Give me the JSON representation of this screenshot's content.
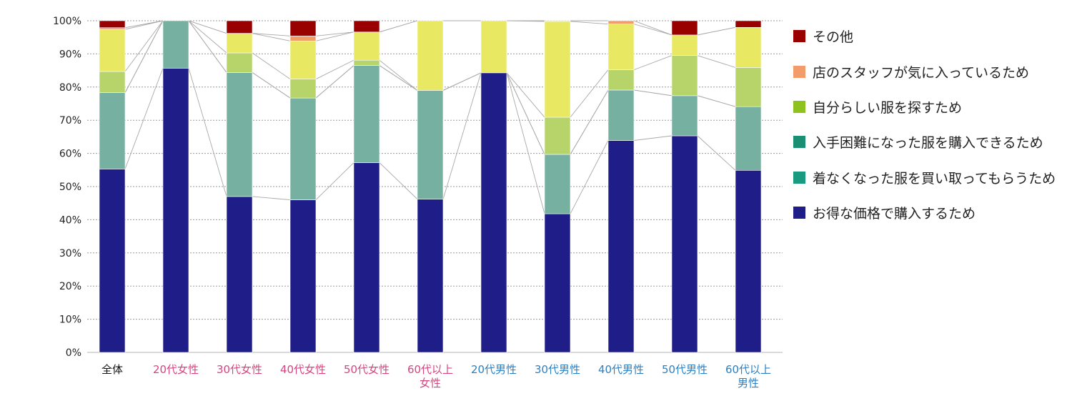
{
  "chart_data": {
    "type": "bar",
    "stacked": true,
    "categories": [
      {
        "label": [
          "全体"
        ],
        "color": "#111111"
      },
      {
        "label": [
          "20代女性"
        ],
        "color": "#d6447f"
      },
      {
        "label": [
          "30代女性"
        ],
        "color": "#d6447f"
      },
      {
        "label": [
          "40代女性"
        ],
        "color": "#d6447f"
      },
      {
        "label": [
          "50代女性"
        ],
        "color": "#d6447f"
      },
      {
        "label": [
          "60代以上",
          "女性"
        ],
        "color": "#d6447f"
      },
      {
        "label": [
          "20代男性"
        ],
        "color": "#2c7fc1"
      },
      {
        "label": [
          "30代男性"
        ],
        "color": "#2c7fc1"
      },
      {
        "label": [
          "40代男性"
        ],
        "color": "#2c7fc1"
      },
      {
        "label": [
          "50代男性"
        ],
        "color": "#2c7fc1"
      },
      {
        "label": [
          "60代以上",
          "男性"
        ],
        "color": "#2c7fc1"
      }
    ],
    "series": [
      {
        "name": "お得な価格で購入するため",
        "color": "#1f1d87",
        "values": [
          55.3,
          85.7,
          47.0,
          46.0,
          57.2,
          46.2,
          84.3,
          41.8,
          63.9,
          65.3,
          54.9
        ]
      },
      {
        "name": "着なくなった服を買い取ってもらうため",
        "color": "#76b0a0",
        "values": [
          23.0,
          14.3,
          37.4,
          30.7,
          29.3,
          32.8,
          0,
          17.9,
          15.2,
          12.1,
          19.2
        ]
      },
      {
        "name": "入手困難になった服を購入できるため",
        "color": "#5fa58e",
        "values": [
          0,
          0,
          0,
          0,
          0,
          0,
          0,
          0,
          0,
          0,
          0
        ]
      },
      {
        "name": "自分らしい服を探すため",
        "color": "#b7d46b",
        "values": [
          6.4,
          0,
          5.9,
          5.7,
          1.6,
          0,
          0,
          11.2,
          6.1,
          12.1,
          11.8
        ]
      },
      {
        "name": "店のスタッフが気に入っているため",
        "color": "#f39c6b",
        "values": [
          0.5,
          0,
          0,
          1.5,
          0,
          0,
          0,
          0.2,
          1.0,
          0,
          0
        ]
      },
      {
        "name": "その他",
        "color": "#990000",
        "values": [
          2.1,
          0,
          3.8,
          4.6,
          3.4,
          0,
          0,
          0,
          0,
          4.3,
          2.0
        ]
      }
    ],
    "hidden_segment": {
      "name": "(unlabeled)",
      "color": "#e8e862",
      "values": [
        12.7,
        0,
        5.9,
        11.5,
        8.5,
        21.0,
        15.7,
        28.9,
        13.8,
        6.2,
        12.1
      ]
    },
    "ylim": [
      0,
      100
    ],
    "yticks": [
      0,
      10,
      20,
      30,
      40,
      50,
      60,
      70,
      80,
      90,
      100
    ],
    "ytick_labels": [
      "0%",
      "10%",
      "20%",
      "30%",
      "40%",
      "50%",
      "60%",
      "70%",
      "80%",
      "90%",
      "100%"
    ],
    "grid": true,
    "legend_position": "right",
    "legend": [
      {
        "label": "その他",
        "color": "#990000"
      },
      {
        "label": "店のスタッフが気に入っているため",
        "color": "#f39c6b"
      },
      {
        "label": "自分らしい服を探すため",
        "color": "#8dc21f"
      },
      {
        "label": "入手困難になった服を購入できるため",
        "color": "#1a8f73"
      },
      {
        "label": "着なくなった服を買い取ってもらうため",
        "color": "#1a9a80"
      },
      {
        "label": "お得な価格で購入するため",
        "color": "#1f1d87"
      }
    ],
    "title": "",
    "xlabel": "",
    "ylabel": ""
  }
}
